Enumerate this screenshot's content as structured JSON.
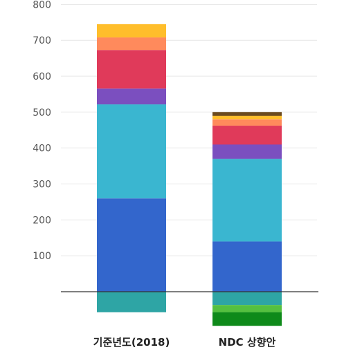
{
  "chart_data": {
    "type": "bar",
    "stacked": true,
    "categories": [
      "기준년도(2018)",
      "NDC 상향안"
    ],
    "y_ticks": [
      "800",
      "700",
      "600",
      "500",
      "400",
      "300",
      "200",
      "100"
    ],
    "ylim": [
      -90,
      800
    ],
    "grid": true,
    "legend": "none",
    "series": [
      {
        "color": "#3366CC",
        "values": [
          260,
          140
        ]
      },
      {
        "color": "#3AB6D0",
        "values": [
          262,
          230
        ]
      },
      {
        "color": "#7B4FBF",
        "values": [
          44,
          40
        ]
      },
      {
        "color": "#E03A5A",
        "values": [
          107,
          52
        ]
      },
      {
        "color": "#FF8A5C",
        "values": [
          35,
          18
        ]
      },
      {
        "color": "#FFBE2B",
        "values": [
          37,
          10
        ]
      },
      {
        "color": "#6B4A1E",
        "values": [
          0,
          10
        ]
      },
      {
        "color": "#2EA5A5",
        "values": [
          -57,
          -37
        ]
      },
      {
        "color": "#55C040",
        "values": [
          0,
          -20
        ]
      },
      {
        "color": "#0E8A1A",
        "values": [
          0,
          -38
        ]
      }
    ]
  }
}
